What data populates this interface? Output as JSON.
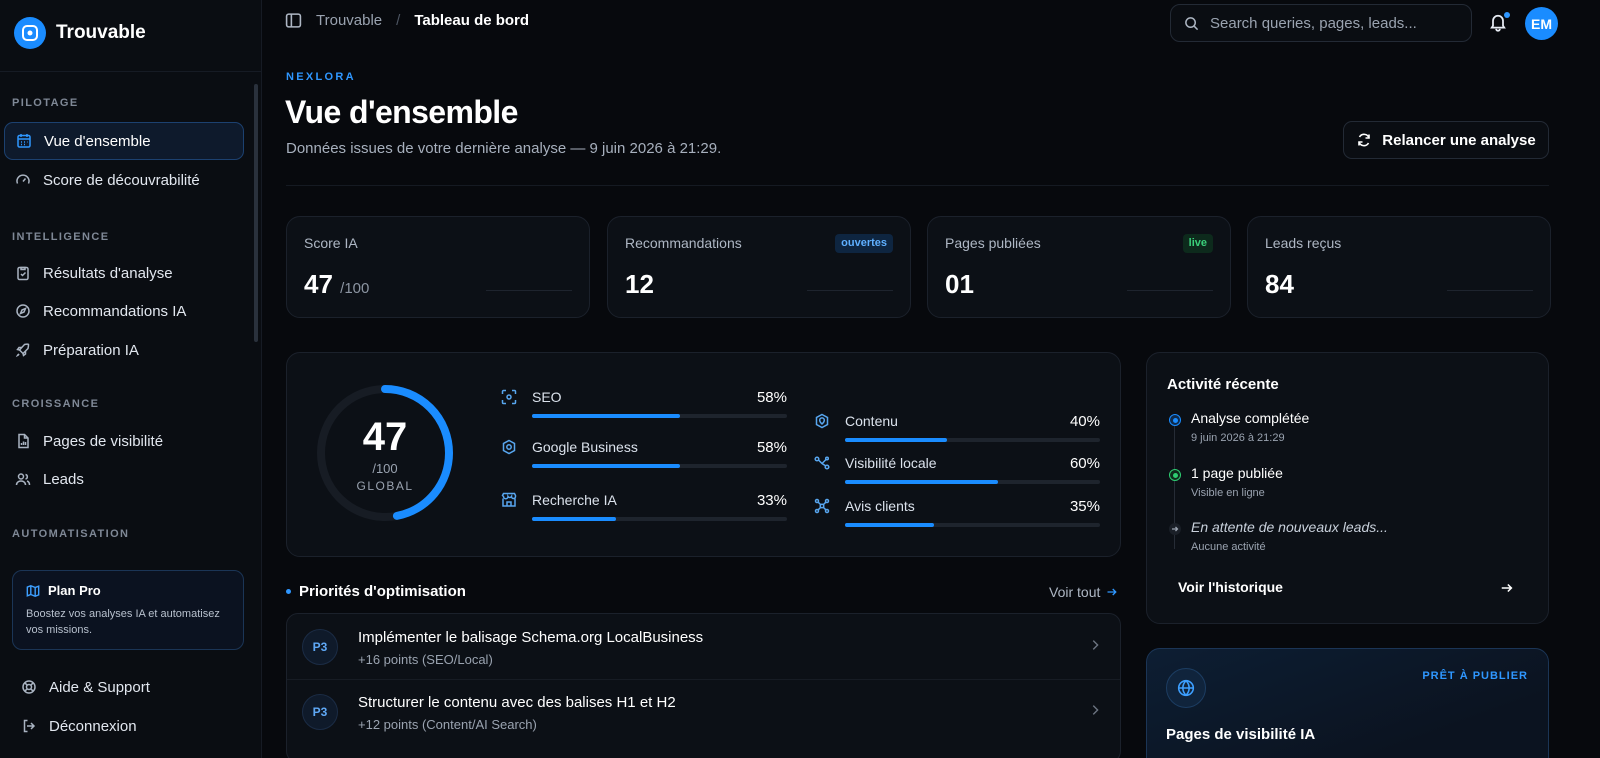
{
  "brand": {
    "name": "Trouvable",
    "color": "#1a8cff"
  },
  "sidebar": {
    "sections": [
      "PILOTAGE",
      "INTELLIGENCE",
      "CROISSANCE",
      "AUTOMATISATION"
    ],
    "items": [
      {
        "label": "Vue d'ensemble",
        "icon": "calendar-grid-icon",
        "active": true
      },
      {
        "label": "Score de découvrabilité",
        "icon": "gauge-icon"
      },
      {
        "label": "Résultats d'analyse",
        "icon": "clipboard-icon"
      },
      {
        "label": "Recommandations IA",
        "icon": "compass-icon"
      },
      {
        "label": "Préparation IA",
        "icon": "rocket-icon"
      },
      {
        "label": "Pages de visibilité",
        "icon": "file-chart-icon"
      },
      {
        "label": "Leads",
        "icon": "users-icon"
      }
    ],
    "plan": {
      "title": "Plan Pro",
      "text": "Boostez vos analyses IA et automatisez vos missions."
    },
    "footer": [
      {
        "label": "Aide & Support",
        "icon": "lifebuoy-icon"
      },
      {
        "label": "Déconnexion",
        "icon": "logout-icon"
      }
    ]
  },
  "topbar": {
    "breadcrumb": [
      "Trouvable",
      "Tableau de bord"
    ],
    "search_placeholder": "Search queries, pages, leads...",
    "avatar": "EM"
  },
  "header": {
    "org": "NEXLORA",
    "title": "Vue d'ensemble",
    "subtitle": "Données issues de votre dernière analyse — 9 juin 2026 à 21:29.",
    "rerun_label": "Relancer une analyse"
  },
  "stats": [
    {
      "label": "Score IA",
      "value": "47",
      "denominator": "/100"
    },
    {
      "label": "Recommandations",
      "value": "12",
      "badge": "ouvertes"
    },
    {
      "label": "Pages publiées",
      "value": "01",
      "badge": "live"
    },
    {
      "label": "Leads reçus",
      "value": "84"
    }
  ],
  "score": {
    "value": "47",
    "denominator": "/100",
    "label": "GLOBAL",
    "fraction": 0.47,
    "metrics": [
      {
        "name": "SEO",
        "value": "58%",
        "pct": 58,
        "icon": "scan-icon"
      },
      {
        "name": "Google Business",
        "value": "58%",
        "pct": 58,
        "icon": "badge-icon"
      },
      {
        "name": "Recherche IA",
        "value": "33%",
        "pct": 33,
        "icon": "store-icon"
      },
      {
        "name": "Contenu",
        "value": "40%",
        "pct": 40,
        "icon": "map-pin-icon"
      },
      {
        "name": "Visibilité locale",
        "value": "60%",
        "pct": 60,
        "icon": "route-icon"
      },
      {
        "name": "Avis clients",
        "value": "35%",
        "pct": 35,
        "icon": "network-icon"
      }
    ]
  },
  "priorities": {
    "title": "Priorités d'optimisation",
    "see_all": "Voir tout",
    "items": [
      {
        "badge": "P3",
        "title": "Implémenter le balisage Schema.org LocalBusiness",
        "sub": "+16 points (SEO/Local)"
      },
      {
        "badge": "P3",
        "title": "Structurer le contenu avec des balises H1 et H2",
        "sub": "+12 points (Content/AI Search)"
      }
    ]
  },
  "activity": {
    "title": "Activité récente",
    "events": [
      {
        "title": "Analyse complétée",
        "sub": "9 juin 2026 à 21:29",
        "color": "#1a8cff"
      },
      {
        "title": "1 page publiée",
        "sub": "Visible en ligne",
        "color": "#2ecc71"
      },
      {
        "title": "En attente de nouveaux leads...",
        "sub": "Aucune activité",
        "color": "#6b7380"
      }
    ],
    "history": "Voir l'historique"
  },
  "publish": {
    "tag": "PRÊT À PUBLIER",
    "title": "Pages de visibilité IA"
  }
}
